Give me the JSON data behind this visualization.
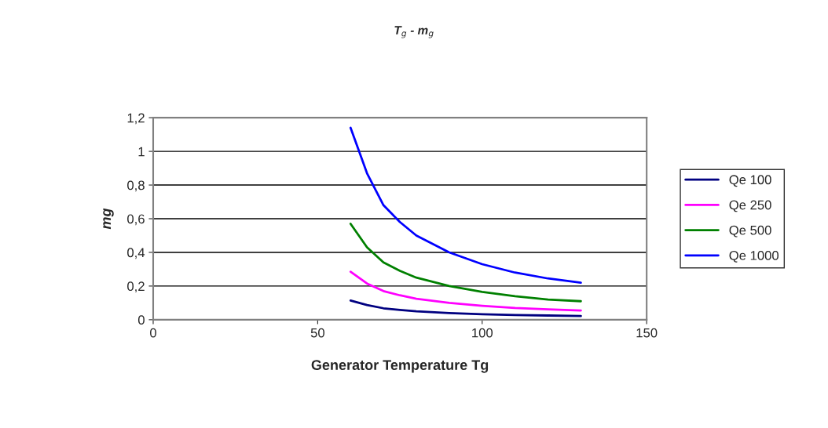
{
  "chart_data": {
    "type": "line",
    "title": "T$_{g}$ - m$_{g}$",
    "xlabel": "Generator Temperature Tg",
    "ylabel": "mg",
    "x": [
      60,
      65,
      70,
      75,
      80,
      90,
      100,
      110,
      120,
      130
    ],
    "series": [
      {
        "name": "Qe 100",
        "color": "#000080",
        "values": [
          0.114,
          0.087,
          0.068,
          0.058,
          0.05,
          0.04,
          0.033,
          0.028,
          0.025,
          0.022
        ]
      },
      {
        "name": "Qe 250",
        "color": "#ff00ff",
        "values": [
          0.285,
          0.215,
          0.17,
          0.145,
          0.125,
          0.1,
          0.083,
          0.07,
          0.062,
          0.055
        ]
      },
      {
        "name": "Qe 500",
        "color": "#008000",
        "values": [
          0.57,
          0.43,
          0.34,
          0.29,
          0.25,
          0.2,
          0.165,
          0.14,
          0.12,
          0.11
        ]
      },
      {
        "name": "Qe 1000",
        "color": "#0000ff",
        "values": [
          1.14,
          0.87,
          0.68,
          0.58,
          0.5,
          0.4,
          0.33,
          0.28,
          0.245,
          0.22
        ]
      }
    ],
    "xlim": [
      0,
      150
    ],
    "xticks": [
      0,
      50,
      100,
      150
    ],
    "ylim": [
      0,
      1.2
    ],
    "yticks": [
      0,
      {
        "value": 0.2,
        "label": "0,2"
      },
      {
        "value": 0.4,
        "label": "0,4"
      },
      {
        "value": 0.6,
        "label": "0,6"
      },
      {
        "value": 0.8,
        "label": "0,8"
      },
      1,
      {
        "value": 1.2,
        "label": "1,2"
      }
    ],
    "grid": "y",
    "legend": "right",
    "marker": "none",
    "line_style": "solid"
  }
}
